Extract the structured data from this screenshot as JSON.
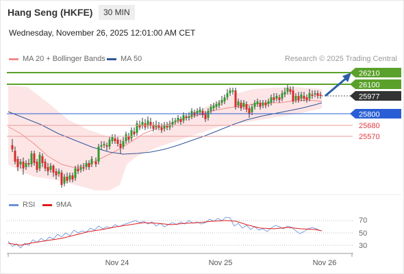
{
  "header": {
    "title": "Hang Seng (HKFE)",
    "interval": "30 MIN",
    "date": "Wednesday, November 26, 2025 12:01:00 AM CET",
    "credit": "Research © 2025 Trading Central"
  },
  "legend": {
    "ma20": {
      "label": "MA 20 + Bollinger Bands",
      "color": "#f28b8b"
    },
    "ma50": {
      "label": "MA 50",
      "color": "#2f5597"
    },
    "rsi": {
      "label": "RSI",
      "color": "#6a8fd8"
    },
    "ma9": {
      "label": "9MA",
      "color": "#e11b1b"
    }
  },
  "price_levels": [
    {
      "value": "26210",
      "kind": "resistance",
      "color": "#5aa12b"
    },
    {
      "value": "26100",
      "kind": "resistance",
      "color": "#5aa12b"
    },
    {
      "value": "25977",
      "kind": "last",
      "color": "#333333"
    },
    {
      "value": "25800",
      "kind": "pivot",
      "color": "#2a5ed4"
    },
    {
      "value": "25680",
      "kind": "support",
      "color": "#e06060"
    },
    {
      "value": "25570",
      "kind": "support",
      "color": "#e06060"
    }
  ],
  "rsi_ticks": [
    "70",
    "50",
    "30"
  ],
  "x_ticks": [
    "Nov 24",
    "Nov 25",
    "Nov 26"
  ]
}
